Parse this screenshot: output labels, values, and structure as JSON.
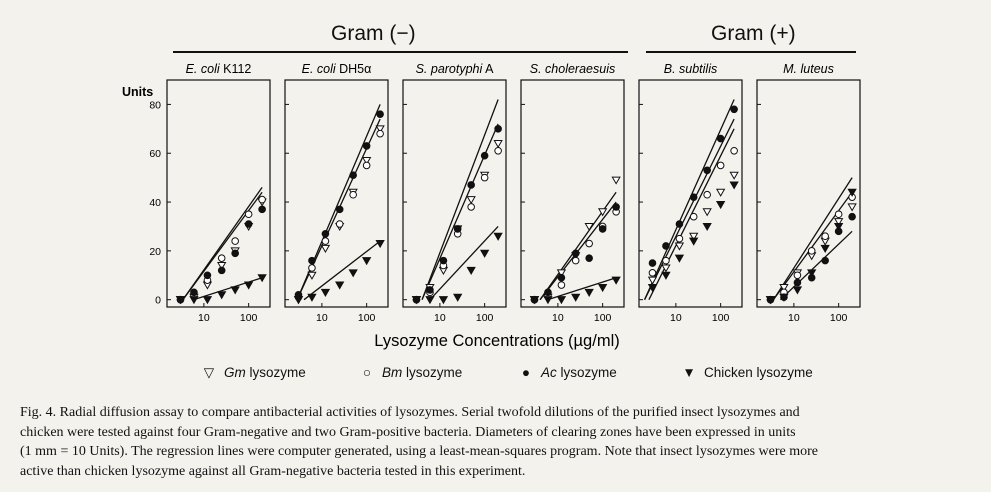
{
  "figure": {
    "group_negative_label": "Gram (−)",
    "group_positive_label": "Gram (+)",
    "y_axis_label": "Units",
    "x_axis_label": "Lysozyme Concentrations (µg/ml)",
    "caption_lines": [
      "Fig. 4. Radial diffusion assay to compare antibacterial activities of lysozymes. Serial twofold dilutions of the purified insect lysozymes and",
      "chicken were tested against four Gram-negative and two Gram-positive bacteria. Diameters of clearing zones have been expressed in units",
      "(1 mm = 10 Units). The regression lines were computer generated, using a least-mean-squares program. Note that insect lysozymes were more",
      "active than chicken lysozyme against all Gram-negative bacteria tested in this experiment."
    ]
  },
  "legend": [
    {
      "marker": "▽",
      "italic": "Gm",
      "rest": " lysozyme"
    },
    {
      "marker": "○",
      "italic": "Bm",
      "rest": " lysozyme"
    },
    {
      "marker": "●",
      "italic": "Ac",
      "rest": " lysozyme"
    },
    {
      "marker": "▼",
      "italic": "",
      "rest": "Chicken lysozyme"
    }
  ],
  "chart_data": [
    {
      "type": "scatter",
      "title_italic": "E. coli",
      "title_rest": " K112",
      "xlabel": "Lysozyme Concentrations (µg/ml)",
      "ylabel": "Units",
      "xscale": "log",
      "xlim": [
        1.5,
        300
      ],
      "ylim": [
        -3,
        90
      ],
      "xticks": [
        10,
        100
      ],
      "yticks": [
        0,
        20,
        40,
        60,
        80
      ],
      "series": [
        {
          "name": "Gm lysozyme",
          "marker": "open-triangle",
          "x": [
            3,
            6,
            12,
            25,
            50,
            100,
            200
          ],
          "y": [
            0,
            1,
            6,
            14,
            20,
            30,
            40
          ]
        },
        {
          "name": "Bm lysozyme",
          "marker": "open-circle",
          "x": [
            3,
            6,
            12,
            25,
            50,
            100,
            200
          ],
          "y": [
            0,
            2,
            8,
            17,
            24,
            35,
            41
          ]
        },
        {
          "name": "Ac lysozyme",
          "marker": "filled-circle",
          "x": [
            3,
            6,
            12,
            25,
            50,
            100,
            200
          ],
          "y": [
            0,
            3,
            10,
            12,
            19,
            31,
            37
          ]
        },
        {
          "name": "Chicken lysozyme",
          "marker": "filled-triangle",
          "x": [
            3,
            6,
            12,
            25,
            50,
            100,
            200
          ],
          "y": [
            0,
            0,
            0,
            2,
            4,
            6,
            9
          ]
        }
      ],
      "fits": [
        {
          "x": [
            3.4,
            200
          ],
          "y": [
            0,
            46
          ]
        },
        {
          "x": [
            3.4,
            200
          ],
          "y": [
            0,
            44
          ]
        },
        {
          "x": [
            6,
            200
          ],
          "y": [
            0,
            9
          ]
        }
      ]
    },
    {
      "type": "scatter",
      "title_italic": "E. coli",
      "title_rest": " DH5α",
      "xlabel": "Lysozyme Concentrations (µg/ml)",
      "ylabel": "Units",
      "xscale": "log",
      "xlim": [
        1.5,
        300
      ],
      "ylim": [
        -3,
        90
      ],
      "xticks": [
        10,
        100
      ],
      "yticks": [
        0,
        20,
        40,
        60,
        80
      ],
      "series": [
        {
          "name": "Gm lysozyme",
          "marker": "open-triangle",
          "x": [
            3,
            6,
            12,
            25,
            50,
            100,
            200
          ],
          "y": [
            0,
            10,
            21,
            30,
            44,
            57,
            70
          ]
        },
        {
          "name": "Bm lysozyme",
          "marker": "open-circle",
          "x": [
            3,
            6,
            12,
            25,
            50,
            100,
            200
          ],
          "y": [
            1,
            13,
            24,
            31,
            43,
            55,
            68
          ]
        },
        {
          "name": "Ac lysozyme",
          "marker": "filled-circle",
          "x": [
            3,
            6,
            12,
            25,
            50,
            100,
            200
          ],
          "y": [
            2,
            16,
            27,
            37,
            51,
            63,
            76
          ]
        },
        {
          "name": "Chicken lysozyme",
          "marker": "filled-triangle",
          "x": [
            3,
            6,
            12,
            25,
            50,
            100,
            200
          ],
          "y": [
            0,
            1,
            3,
            6,
            11,
            16,
            23
          ]
        }
      ],
      "fits": [
        {
          "x": [
            2.8,
            200
          ],
          "y": [
            0,
            80
          ]
        },
        {
          "x": [
            2.8,
            200
          ],
          "y": [
            0,
            74
          ]
        },
        {
          "x": [
            4,
            200
          ],
          "y": [
            0,
            24
          ]
        }
      ]
    },
    {
      "type": "scatter",
      "title_italic": "S. parotyphi",
      "title_rest": " A",
      "xlabel": "Lysozyme Concentrations (µg/ml)",
      "ylabel": "Units",
      "xscale": "log",
      "xlim": [
        1.5,
        300
      ],
      "ylim": [
        -3,
        90
      ],
      "xticks": [
        10,
        100
      ],
      "yticks": [
        0,
        20,
        40,
        60,
        80
      ],
      "series": [
        {
          "name": "Gm lysozyme",
          "marker": "open-triangle",
          "x": [
            3,
            6,
            12,
            25,
            50,
            100,
            200
          ],
          "y": [
            0,
            5,
            12,
            29,
            41,
            51,
            64
          ]
        },
        {
          "name": "Bm lysozyme",
          "marker": "open-circle",
          "x": [
            3,
            6,
            12,
            25,
            50,
            100,
            200
          ],
          "y": [
            0,
            3,
            14,
            27,
            38,
            50,
            61
          ]
        },
        {
          "name": "Ac lysozyme",
          "marker": "filled-circle",
          "x": [
            3,
            6,
            12,
            25,
            50,
            100,
            200
          ],
          "y": [
            0,
            4,
            16,
            29,
            47,
            59,
            70
          ]
        },
        {
          "name": "Chicken lysozyme",
          "marker": "filled-triangle",
          "x": [
            3,
            6,
            12,
            25,
            50,
            100,
            200
          ],
          "y": [
            0,
            0,
            0,
            1,
            12,
            19,
            26
          ]
        }
      ],
      "fits": [
        {
          "x": [
            4,
            200
          ],
          "y": [
            0,
            82
          ]
        },
        {
          "x": [
            4,
            200
          ],
          "y": [
            0,
            72
          ]
        },
        {
          "x": [
            6,
            200
          ],
          "y": [
            0,
            30
          ]
        }
      ]
    },
    {
      "type": "scatter",
      "title_italic": "S. choleraesuis",
      "title_rest": "",
      "xlabel": "Lysozyme Concentrations (µg/ml)",
      "ylabel": "Units",
      "xscale": "log",
      "xlim": [
        1.5,
        300
      ],
      "ylim": [
        -3,
        90
      ],
      "xticks": [
        10,
        100
      ],
      "yticks": [
        0,
        20,
        40,
        60,
        80
      ],
      "series": [
        {
          "name": "Gm lysozyme",
          "marker": "open-triangle",
          "x": [
            3,
            6,
            12,
            25,
            50,
            100,
            200
          ],
          "y": [
            0,
            1,
            11,
            18,
            30,
            36,
            49
          ]
        },
        {
          "name": "Bm lysozyme",
          "marker": "open-circle",
          "x": [
            3,
            6,
            12,
            25,
            50,
            100,
            200
          ],
          "y": [
            0,
            2,
            6,
            16,
            23,
            30,
            36
          ]
        },
        {
          "name": "Ac lysozyme",
          "marker": "filled-circle",
          "x": [
            3,
            6,
            12,
            25,
            50,
            100,
            200
          ],
          "y": [
            0,
            3,
            9,
            19,
            17,
            29,
            38
          ]
        },
        {
          "name": "Chicken lysozyme",
          "marker": "filled-triangle",
          "x": [
            3,
            6,
            12,
            25,
            50,
            100,
            200
          ],
          "y": [
            0,
            0,
            0,
            1,
            3,
            5,
            8
          ]
        }
      ],
      "fits": [
        {
          "x": [
            4,
            200
          ],
          "y": [
            0,
            44
          ]
        },
        {
          "x": [
            4,
            200
          ],
          "y": [
            0,
            40
          ]
        },
        {
          "x": [
            6,
            200
          ],
          "y": [
            0,
            9
          ]
        }
      ]
    },
    {
      "type": "scatter",
      "title_italic": "B. subtilis",
      "title_rest": "",
      "xlabel": "Lysozyme Concentrations (µg/ml)",
      "ylabel": "Units",
      "xscale": "log",
      "xlim": [
        1.5,
        300
      ],
      "ylim": [
        -3,
        90
      ],
      "xticks": [
        10,
        100
      ],
      "yticks": [
        0,
        20,
        40,
        60,
        80
      ],
      "series": [
        {
          "name": "Gm lysozyme",
          "marker": "open-triangle",
          "x": [
            3,
            6,
            12,
            25,
            50,
            100,
            200
          ],
          "y": [
            8,
            13,
            22,
            26,
            36,
            44,
            51
          ]
        },
        {
          "name": "Bm lysozyme",
          "marker": "open-circle",
          "x": [
            3,
            6,
            12,
            25,
            50,
            100,
            200
          ],
          "y": [
            11,
            16,
            25,
            34,
            43,
            55,
            61
          ]
        },
        {
          "name": "Ac lysozyme",
          "marker": "filled-circle",
          "x": [
            3,
            6,
            12,
            25,
            50,
            100,
            200
          ],
          "y": [
            15,
            22,
            31,
            42,
            53,
            66,
            78
          ]
        },
        {
          "name": "Chicken lysozyme",
          "marker": "filled-triangle",
          "x": [
            3,
            6,
            12,
            25,
            50,
            100,
            200
          ],
          "y": [
            5,
            10,
            17,
            24,
            30,
            39,
            47
          ]
        }
      ],
      "fits": [
        {
          "x": [
            2,
            200
          ],
          "y": [
            0,
            82
          ]
        },
        {
          "x": [
            2,
            200
          ],
          "y": [
            0,
            74
          ]
        },
        {
          "x": [
            2.5,
            200
          ],
          "y": [
            0,
            70
          ]
        }
      ]
    },
    {
      "type": "scatter",
      "title_italic": "M. luteus",
      "title_rest": "",
      "xlabel": "Lysozyme Concentrations (µg/ml)",
      "ylabel": "Units",
      "xscale": "log",
      "xlim": [
        1.5,
        300
      ],
      "ylim": [
        -3,
        90
      ],
      "xticks": [
        10,
        100
      ],
      "yticks": [
        0,
        20,
        40,
        60,
        80
      ],
      "series": [
        {
          "name": "Gm lysozyme",
          "marker": "open-triangle",
          "x": [
            3,
            6,
            12,
            25,
            50,
            100,
            200
          ],
          "y": [
            0,
            5,
            11,
            18,
            24,
            32,
            38
          ]
        },
        {
          "name": "Bm lysozyme",
          "marker": "open-circle",
          "x": [
            3,
            6,
            12,
            25,
            50,
            100,
            200
          ],
          "y": [
            0,
            3,
            10,
            20,
            26,
            35,
            42
          ]
        },
        {
          "name": "Ac lysozyme",
          "marker": "filled-circle",
          "x": [
            3,
            6,
            12,
            25,
            50,
            100,
            200
          ],
          "y": [
            0,
            1,
            7,
            9,
            16,
            28,
            34
          ]
        },
        {
          "name": "Chicken lysozyme",
          "marker": "filled-triangle",
          "x": [
            3,
            6,
            12,
            25,
            50,
            100,
            200
          ],
          "y": [
            0,
            1,
            4,
            11,
            21,
            30,
            44
          ]
        }
      ],
      "fits": [
        {
          "x": [
            3.5,
            200
          ],
          "y": [
            0,
            50
          ]
        },
        {
          "x": [
            3.5,
            200
          ],
          "y": [
            0,
            44
          ]
        },
        {
          "x": [
            5,
            200
          ],
          "y": [
            0,
            28
          ]
        }
      ]
    }
  ]
}
